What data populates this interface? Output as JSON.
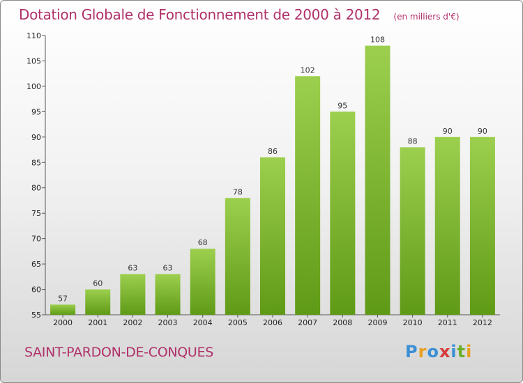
{
  "header": {
    "title": "Dotation Globale de Fonctionnement de 2000 à 2012",
    "subtitle": "(en milliers d'€)"
  },
  "footer": {
    "commune": "SAINT-PARDON-DE-CONQUES",
    "logo_text": "Proxiti",
    "logo_colors": [
      "#3a8fd6",
      "#e8a020",
      "#3a8fd6",
      "#d63a3a",
      "#3a8fd6",
      "#6ab02a",
      "#e8a020"
    ]
  },
  "chart_data": {
    "type": "bar",
    "title": "Dotation Globale de Fonctionnement de 2000 à 2012",
    "subtitle": "(en milliers d'€)",
    "categories": [
      "2000",
      "2001",
      "2002",
      "2003",
      "2004",
      "2005",
      "2006",
      "2007",
      "2008",
      "2009",
      "2010",
      "2011",
      "2012"
    ],
    "values": [
      57,
      60,
      63,
      63,
      68,
      78,
      86,
      102,
      95,
      108,
      88,
      90,
      90
    ],
    "ylim": [
      55,
      110
    ],
    "yticks": [
      55,
      60,
      65,
      70,
      75,
      80,
      85,
      90,
      95,
      100,
      105,
      110
    ],
    "grid": false,
    "colors": {
      "bar_light": "#9ccf4e",
      "bar_dark": "#5f9a16",
      "axis": "#555555"
    }
  }
}
